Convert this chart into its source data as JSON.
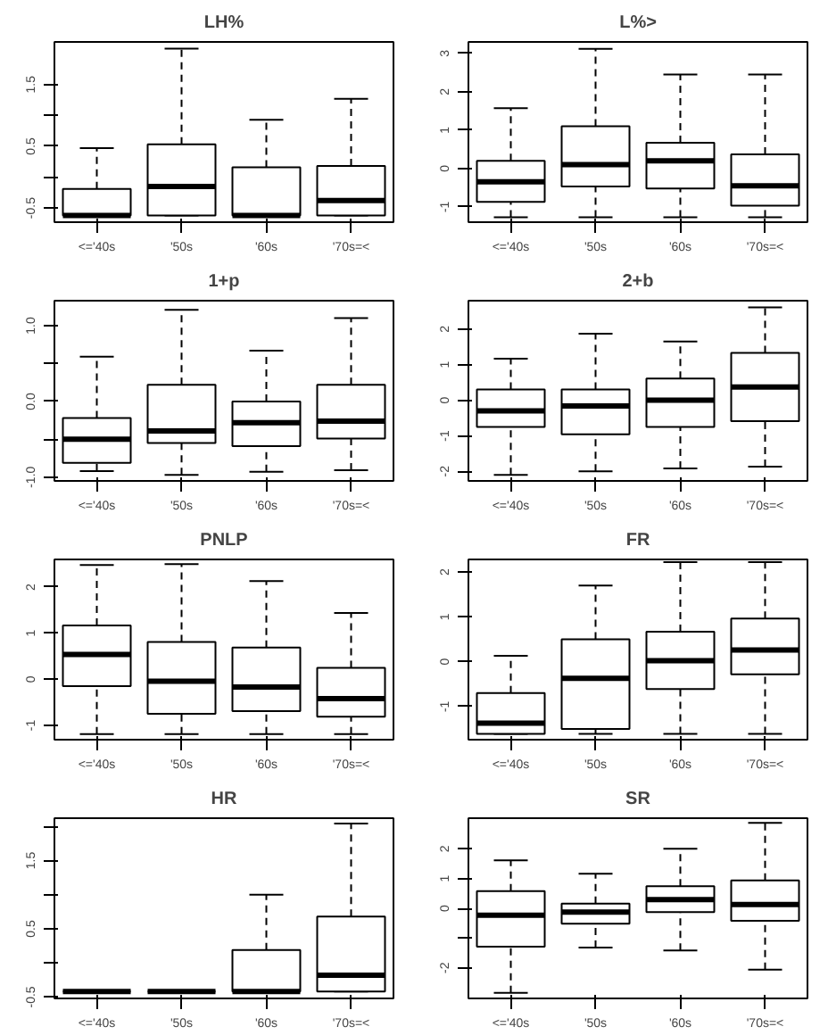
{
  "chart_data": [
    {
      "type": "box",
      "title": "LH%",
      "categories": [
        "<='40s",
        "'50s",
        "'60s",
        "'70s=<"
      ],
      "ylim": [
        -0.73,
        2.19
      ],
      "yticks": [
        -0.5,
        {
          "value": 0,
          "label": null
        },
        0.5,
        {
          "value": 1,
          "label": null
        },
        1.5
      ],
      "grid": false,
      "boxes": [
        {
          "low": -0.62,
          "q1": -0.62,
          "median": -0.62,
          "q3": -0.19,
          "high": 0.47
        },
        {
          "low": -0.62,
          "q1": -0.62,
          "median": -0.15,
          "q3": 0.53,
          "high": 2.08
        },
        {
          "low": -0.62,
          "q1": -0.62,
          "median": -0.62,
          "q3": 0.16,
          "high": 0.93
        },
        {
          "low": -0.62,
          "q1": -0.62,
          "median": -0.38,
          "q3": 0.18,
          "high": 1.27
        }
      ]
    },
    {
      "type": "box",
      "title": "L%>",
      "categories": [
        "<='40s",
        "'50s",
        "'60s",
        "'70s=<"
      ],
      "ylim": [
        -1.4,
        3.3
      ],
      "yticks": [
        -1,
        0,
        1,
        2,
        3
      ],
      "grid": false,
      "boxes": [
        {
          "low": -1.27,
          "q1": -0.87,
          "median": -0.35,
          "q3": 0.2,
          "high": 1.57
        },
        {
          "low": -1.27,
          "q1": -0.47,
          "median": 0.1,
          "q3": 1.1,
          "high": 3.12
        },
        {
          "low": -1.27,
          "q1": -0.52,
          "median": 0.2,
          "q3": 0.67,
          "high": 2.45
        },
        {
          "low": -1.27,
          "q1": -0.97,
          "median": -0.45,
          "q3": 0.37,
          "high": 2.45
        }
      ]
    },
    {
      "type": "box",
      "title": "1+p",
      "categories": [
        "<='40s",
        "'50s",
        "'60s",
        "'70s=<"
      ],
      "ylim": [
        -1.05,
        1.33
      ],
      "yticks": [
        {
          "value": -1,
          "label": "-1.0"
        },
        {
          "value": -0.5,
          "label": null
        },
        {
          "value": 0,
          "label": "0.0"
        },
        {
          "value": 0.5,
          "label": null
        },
        {
          "value": 1,
          "label": "1.0"
        }
      ],
      "grid": false,
      "boxes": [
        {
          "low": -0.92,
          "q1": -0.81,
          "median": -0.5,
          "q3": -0.22,
          "high": 0.59
        },
        {
          "low": -0.97,
          "q1": -0.55,
          "median": -0.39,
          "q3": 0.22,
          "high": 1.21
        },
        {
          "low": -0.93,
          "q1": -0.59,
          "median": -0.28,
          "q3": 0.0,
          "high": 0.67
        },
        {
          "low": -0.91,
          "q1": -0.49,
          "median": -0.26,
          "q3": 0.22,
          "high": 1.1
        }
      ]
    },
    {
      "type": "box",
      "title": "2+b",
      "categories": [
        "<='40s",
        "'50s",
        "'60s",
        "'70s=<"
      ],
      "ylim": [
        -2.27,
        2.8
      ],
      "yticks": [
        -2,
        -1,
        0,
        1,
        2
      ],
      "grid": false,
      "boxes": [
        {
          "low": -2.1,
          "q1": -0.75,
          "median": -0.3,
          "q3": 0.3,
          "high": 1.17
        },
        {
          "low": -2.0,
          "q1": -0.96,
          "median": -0.16,
          "q3": 0.3,
          "high": 1.87
        },
        {
          "low": -1.92,
          "q1": -0.75,
          "median": 0.0,
          "q3": 0.61,
          "high": 1.65
        },
        {
          "low": -1.87,
          "q1": -0.59,
          "median": 0.37,
          "q3": 1.33,
          "high": 2.61
        }
      ]
    },
    {
      "type": "box",
      "title": "PNLP",
      "categories": [
        "<='40s",
        "'50s",
        "'60s",
        "'70s=<"
      ],
      "ylim": [
        -1.31,
        2.6
      ],
      "yticks": [
        -1,
        0,
        1,
        2
      ],
      "grid": false,
      "boxes": [
        {
          "low": -1.19,
          "q1": -0.15,
          "median": 0.54,
          "q3": 1.17,
          "high": 2.48
        },
        {
          "low": -1.19,
          "q1": -0.75,
          "median": -0.04,
          "q3": 0.81,
          "high": 2.5
        },
        {
          "low": -1.19,
          "q1": -0.69,
          "median": -0.17,
          "q3": 0.69,
          "high": 2.13
        },
        {
          "low": -1.19,
          "q1": -0.81,
          "median": -0.42,
          "q3": 0.25,
          "high": 1.44
        }
      ]
    },
    {
      "type": "box",
      "title": "FR",
      "categories": [
        "<='40s",
        "'50s",
        "'60s",
        "'70s=<"
      ],
      "ylim": [
        -1.74,
        2.28
      ],
      "yticks": [
        -1,
        0,
        1,
        2
      ],
      "grid": false,
      "boxes": [
        {
          "low": -1.61,
          "q1": -1.61,
          "median": -1.37,
          "q3": -0.7,
          "high": 0.13
        },
        {
          "low": -1.61,
          "q1": -1.5,
          "median": -0.37,
          "q3": 0.5,
          "high": 1.7
        },
        {
          "low": -1.61,
          "q1": -0.61,
          "median": 0.02,
          "q3": 0.67,
          "high": 2.22
        },
        {
          "low": -1.61,
          "q1": -0.28,
          "median": 0.26,
          "q3": 0.96,
          "high": 2.22
        }
      ]
    },
    {
      "type": "box",
      "title": "HR",
      "categories": [
        "<='40s",
        "'50s",
        "'60s",
        "'70s=<"
      ],
      "ylim": [
        -0.52,
        2.12
      ],
      "yticks": [
        -0.5,
        {
          "value": 0,
          "label": null
        },
        0.5,
        {
          "value": 1,
          "label": null
        },
        1.5,
        {
          "value": 2,
          "label": null
        }
      ],
      "grid": false,
      "boxes": [
        {
          "low": -0.42,
          "q1": -0.42,
          "median": -0.42,
          "q3": -0.42,
          "high": -0.42
        },
        {
          "low": -0.42,
          "q1": -0.42,
          "median": -0.42,
          "q3": -0.42,
          "high": -0.42
        },
        {
          "low": -0.42,
          "q1": -0.42,
          "median": -0.42,
          "q3": 0.19,
          "high": 1.0
        },
        {
          "low": -0.42,
          "q1": -0.42,
          "median": -0.18,
          "q3": 0.68,
          "high": 2.04
        }
      ]
    },
    {
      "type": "box",
      "title": "SR",
      "categories": [
        "<='40s",
        "'50s",
        "'60s",
        "'70s=<"
      ],
      "ylim": [
        -3.03,
        3.03
      ],
      "yticks": [
        -2,
        {
          "value": -1,
          "label": null
        },
        0,
        1,
        2
      ],
      "grid": false,
      "boxes": [
        {
          "low": -2.84,
          "q1": -1.29,
          "median": -0.23,
          "q3": 0.58,
          "high": 1.61
        },
        {
          "low": -1.32,
          "q1": -0.52,
          "median": -0.13,
          "q3": 0.16,
          "high": 1.16
        },
        {
          "low": -1.42,
          "q1": -0.13,
          "median": 0.29,
          "q3": 0.74,
          "high": 2.0
        },
        {
          "low": -2.06,
          "q1": -0.42,
          "median": 0.13,
          "q3": 0.94,
          "high": 2.87
        }
      ]
    }
  ]
}
